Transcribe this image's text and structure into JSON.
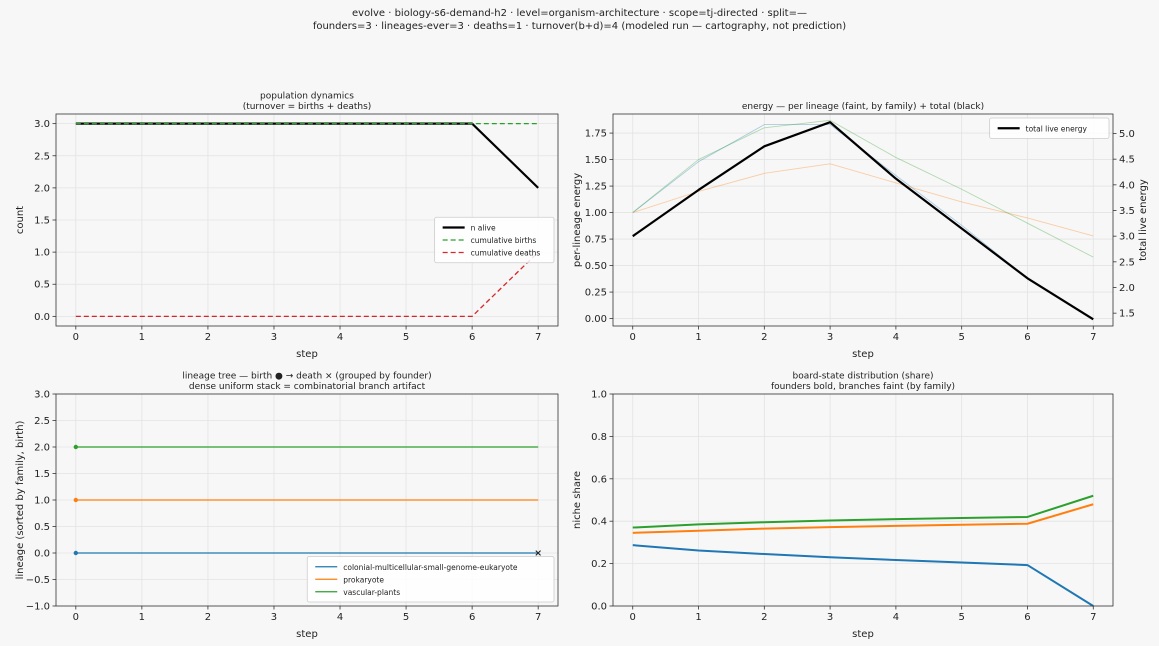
{
  "figure": {
    "suptitle": [
      "evolve · biology-s6-demand-h2 · level=organism-architecture · scope=tj-directed · split=—",
      "founders=3 · lineages-ever=3 · deaths=1 · turnover(b+d)=4   (modeled run — cartography, not prediction)"
    ]
  },
  "chart_data": [
    {
      "id": "population",
      "type": "line",
      "title": [
        "population dynamics",
        "(turnover = births + deaths)"
      ],
      "xlabel": "step",
      "ylabel": "count",
      "xlim": [
        -0.3,
        7.3
      ],
      "ylim": [
        -0.15,
        3.15
      ],
      "xticks": [
        0,
        1,
        2,
        3,
        4,
        5,
        6,
        7
      ],
      "yticks": [
        0.0,
        0.5,
        1.0,
        1.5,
        2.0,
        2.5,
        3.0
      ],
      "ytick_labels": [
        "0.0",
        "0.5",
        "1.0",
        "1.5",
        "2.0",
        "2.5",
        "3.0"
      ],
      "grid": true,
      "legend": "center-right",
      "series": [
        {
          "name": "n alive",
          "x": [
            0,
            1,
            2,
            3,
            4,
            5,
            6,
            7
          ],
          "y": [
            3,
            3,
            3,
            3,
            3,
            3,
            3,
            2
          ],
          "color": "#000000",
          "style": "solid",
          "width": 2.2
        },
        {
          "name": "cumulative births",
          "x": [
            0,
            1,
            2,
            3,
            4,
            5,
            6,
            7
          ],
          "y": [
            3,
            3,
            3,
            3,
            3,
            3,
            3,
            3
          ],
          "color": "#2ca02c",
          "style": "dashed",
          "width": 1.3
        },
        {
          "name": "cumulative deaths",
          "x": [
            0,
            1,
            2,
            3,
            4,
            5,
            6,
            7
          ],
          "y": [
            0,
            0,
            0,
            0,
            0,
            0,
            0,
            1
          ],
          "color": "#d62728",
          "style": "dashed",
          "width": 1.3
        }
      ]
    },
    {
      "id": "energy",
      "type": "line",
      "title": [
        "energy — per lineage (faint, by family) + total (black)"
      ],
      "xlabel": "step",
      "ylabel": "per-lineage energy",
      "y2label": "total live energy",
      "xlim": [
        -0.3,
        7.3
      ],
      "ylim": [
        -0.07,
        1.93
      ],
      "y2lim": [
        1.25,
        5.38
      ],
      "xticks": [
        0,
        1,
        2,
        3,
        4,
        5,
        6,
        7
      ],
      "yticks": [
        0.0,
        0.25,
        0.5,
        0.75,
        1.0,
        1.25,
        1.5,
        1.75
      ],
      "ytick_labels": [
        "0.00",
        "0.25",
        "0.50",
        "0.75",
        "1.00",
        "1.25",
        "1.50",
        "1.75"
      ],
      "y2ticks": [
        1.5,
        2.0,
        2.5,
        3.0,
        3.5,
        4.0,
        4.5,
        5.0
      ],
      "y2tick_labels": [
        "1.5",
        "2.0",
        "2.5",
        "3.0",
        "3.5",
        "4.0",
        "4.5",
        "5.0"
      ],
      "grid": true,
      "legend": "top-right",
      "series": [
        {
          "x": [
            0,
            1,
            2,
            3,
            4,
            5,
            6,
            7
          ],
          "y": [
            1.0,
            1.48,
            1.83,
            1.83,
            1.35,
            0.88,
            0.38,
            0.0
          ],
          "axis": "left",
          "color": "#1f77b4",
          "opacity": 0.35,
          "width": 0.9
        },
        {
          "x": [
            0,
            1,
            2,
            3,
            4,
            5,
            6,
            7
          ],
          "y": [
            1.0,
            1.2,
            1.37,
            1.46,
            1.28,
            1.1,
            0.95,
            0.78
          ],
          "axis": "left",
          "color": "#ff7f0e",
          "opacity": 0.35,
          "width": 0.9
        },
        {
          "x": [
            0,
            1,
            2,
            3,
            4,
            5,
            6,
            7
          ],
          "y": [
            1.0,
            1.5,
            1.8,
            1.87,
            1.52,
            1.22,
            0.9,
            0.58
          ],
          "axis": "left",
          "color": "#2ca02c",
          "opacity": 0.35,
          "width": 0.9
        },
        {
          "name": "total live energy",
          "x": [
            0,
            1,
            2,
            3,
            4,
            5,
            6,
            7
          ],
          "y": [
            3.0,
            3.9,
            4.75,
            5.22,
            4.12,
            3.15,
            2.18,
            1.38
          ],
          "axis": "right",
          "color": "#000000",
          "opacity": 1,
          "width": 2.2
        }
      ]
    },
    {
      "id": "lineage-tree",
      "type": "line",
      "title": [
        "lineage tree — birth ● → death ×  (grouped by founder)",
        "dense uniform stack = combinatorial branch artifact"
      ],
      "xlabel": "step",
      "ylabel": "lineage (sorted by family, birth)",
      "xlim": [
        -0.3,
        7.3
      ],
      "ylim": [
        -1.0,
        3.0
      ],
      "xticks": [
        0,
        1,
        2,
        3,
        4,
        5,
        6,
        7
      ],
      "yticks": [
        -1.0,
        -0.5,
        0.0,
        0.5,
        1.0,
        1.5,
        2.0,
        2.5,
        3.0
      ],
      "ytick_labels": [
        "−1.0",
        "−0.5",
        "0.0",
        "0.5",
        "1.0",
        "1.5",
        "2.0",
        "2.5",
        "3.0"
      ],
      "grid": true,
      "legend": "bottom-right",
      "series": [
        {
          "name": "colonial-multicellular-small-genome-eukaryote",
          "x": [
            0,
            7
          ],
          "y": [
            0,
            0
          ],
          "color": "#1f77b4",
          "width": 1.3,
          "birth": 0,
          "death": 7
        },
        {
          "name": "prokaryote",
          "x": [
            0,
            7
          ],
          "y": [
            1,
            1
          ],
          "color": "#ff7f0e",
          "width": 1.3,
          "birth": 0,
          "death": null
        },
        {
          "name": "vascular-plants",
          "x": [
            0,
            7
          ],
          "y": [
            2,
            2
          ],
          "color": "#2ca02c",
          "width": 1.3,
          "birth": 0,
          "death": null
        }
      ]
    },
    {
      "id": "board-state",
      "type": "line",
      "title": [
        "board-state distribution (share)",
        "founders bold, branches faint (by family)"
      ],
      "xlabel": "step",
      "ylabel": "niche share",
      "xlim": [
        -0.3,
        7.3
      ],
      "ylim": [
        0.0,
        1.0
      ],
      "xticks": [
        0,
        1,
        2,
        3,
        4,
        5,
        6,
        7
      ],
      "yticks": [
        0.0,
        0.2,
        0.4,
        0.6,
        0.8,
        1.0
      ],
      "ytick_labels": [
        "0.0",
        "0.2",
        "0.4",
        "0.6",
        "0.8",
        "1.0"
      ],
      "grid": true,
      "legend": "none",
      "series": [
        {
          "x": [
            0,
            1,
            2,
            3,
            4,
            5,
            6,
            7
          ],
          "y": [
            0.287,
            0.262,
            0.245,
            0.23,
            0.217,
            0.205,
            0.193,
            0.0
          ],
          "color": "#1f77b4",
          "width": 2.0
        },
        {
          "x": [
            0,
            1,
            2,
            3,
            4,
            5,
            6,
            7
          ],
          "y": [
            0.345,
            0.355,
            0.365,
            0.372,
            0.378,
            0.383,
            0.388,
            0.48
          ],
          "color": "#ff7f0e",
          "width": 2.0
        },
        {
          "x": [
            0,
            1,
            2,
            3,
            4,
            5,
            6,
            7
          ],
          "y": [
            0.37,
            0.385,
            0.395,
            0.403,
            0.41,
            0.415,
            0.42,
            0.52
          ],
          "color": "#2ca02c",
          "width": 2.0
        }
      ]
    }
  ]
}
